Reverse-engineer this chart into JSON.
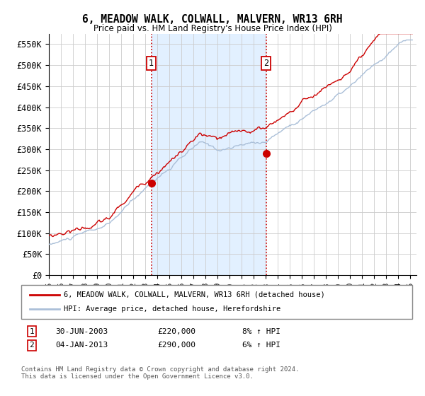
{
  "title": "6, MEADOW WALK, COLWALL, MALVERN, WR13 6RH",
  "subtitle": "Price paid vs. HM Land Registry's House Price Index (HPI)",
  "property_label": "6, MEADOW WALK, COLWALL, MALVERN, WR13 6RH (detached house)",
  "hpi_label": "HPI: Average price, detached house, Herefordshire",
  "sale1_date": "30-JUN-2003",
  "sale1_price": "£220,000",
  "sale1_hpi": "8% ↑ HPI",
  "sale1_year": 2003.5,
  "sale1_value": 220000,
  "sale2_date": "04-JAN-2013",
  "sale2_price": "£290,000",
  "sale2_hpi": "6% ↑ HPI",
  "sale2_year": 2013.04,
  "sale2_value": 290000,
  "yticks": [
    0,
    50000,
    100000,
    150000,
    200000,
    250000,
    300000,
    350000,
    400000,
    450000,
    500000,
    550000
  ],
  "ylim": [
    0,
    575000
  ],
  "xlim_start": 1995.0,
  "xlim_end": 2025.5,
  "background_color": "#ffffff",
  "plot_bg_color": "#ffffff",
  "grid_color": "#cccccc",
  "hpi_line_color": "#aabfd8",
  "property_line_color": "#cc0000",
  "sale_dot_color": "#cc0000",
  "dashed_line_color": "#cc0000",
  "shaded_region_color": "#ddeeff",
  "footer_text": "Contains HM Land Registry data © Crown copyright and database right 2024.\nThis data is licensed under the Open Government Licence v3.0."
}
